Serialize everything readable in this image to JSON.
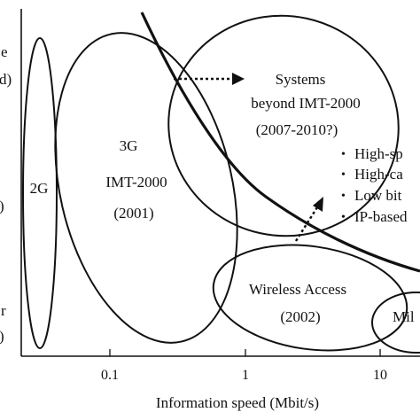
{
  "x_axis": {
    "label": "Information speed (Mbit/s)",
    "ticks": [
      "0.1",
      "1",
      "10"
    ]
  },
  "y_axis_label_fragments": [
    "e",
    "d)",
    ")",
    "r",
    ")"
  ],
  "regions": {
    "g2": {
      "label": "2G"
    },
    "g3": {
      "lines": [
        "3G",
        "IMT-2000",
        "(2001)"
      ]
    },
    "beyond": {
      "lines": [
        "Systems",
        "beyond IMT-2000",
        "(2007-2010?)"
      ],
      "bullets": [
        "High-sp",
        "High-ca",
        "Low bit",
        "IP-based"
      ]
    },
    "wireless_access": {
      "lines": [
        "Wireless Access",
        "(2002)"
      ]
    },
    "mil": {
      "label": "Mil"
    }
  },
  "bullet_glyph": "•"
}
